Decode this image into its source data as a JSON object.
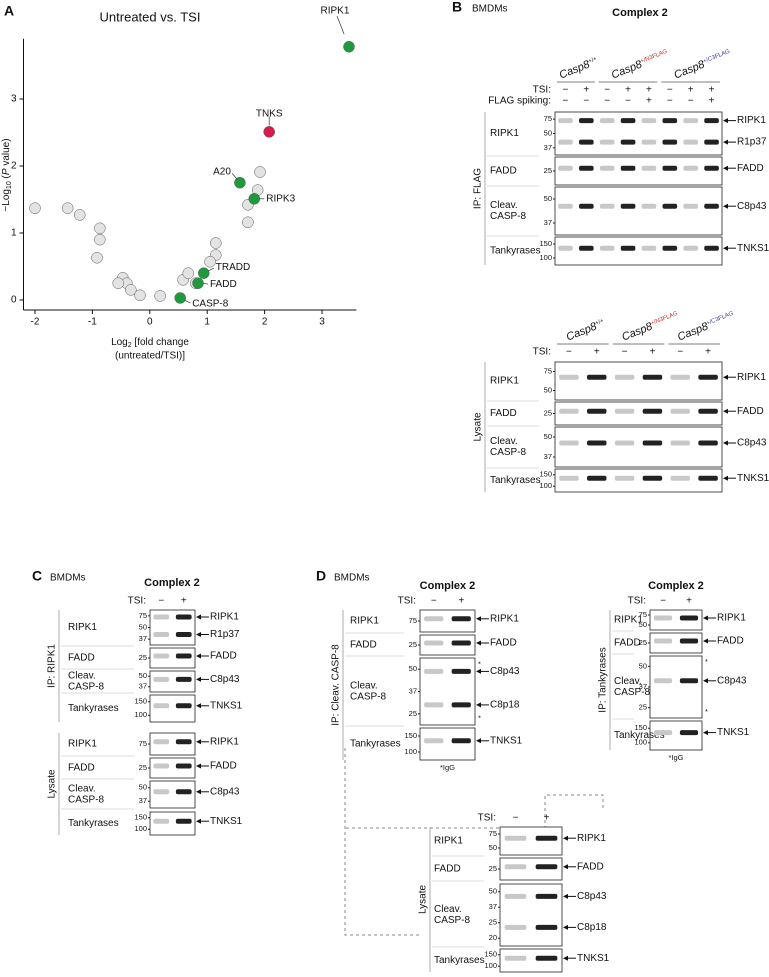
{
  "chart_data": {
    "type": "scatter",
    "letter": "A",
    "title": "Untreated vs. TSI",
    "ylabel_parts": [
      "−Log",
      "10",
      " (",
      "P",
      " value)"
    ],
    "xlabel_parts": [
      "Log",
      "2",
      " [fold change"
    ],
    "xlabel_line2": "(untreated/TSI)]",
    "xlim": [
      -2.2,
      3.6
    ],
    "ylim": [
      -0.15,
      3.9
    ],
    "xticks": [
      -2,
      -1,
      0,
      1,
      2,
      3
    ],
    "yticks": [
      0,
      1,
      2,
      3
    ],
    "series": [
      {
        "color": "#e3e3e3",
        "x": [
          -2.0,
          -1.43,
          -1.22,
          -0.87,
          -0.87,
          -0.92,
          -0.47,
          -0.4,
          -0.55,
          -0.33,
          -0.17,
          0.18,
          0.58,
          0.67,
          0.8,
          1.15,
          1.15,
          1.05,
          1.71,
          1.71,
          1.92,
          1.88
        ],
        "values": [
          1.37,
          1.37,
          1.27,
          1.07,
          0.9,
          0.63,
          0.33,
          0.25,
          0.25,
          0.15,
          0.07,
          0.06,
          0.3,
          0.4,
          0.25,
          0.85,
          0.67,
          0.57,
          1.42,
          1.16,
          1.91,
          1.64
        ]
      },
      {
        "color": "#1e9a3c",
        "x": [
          3.47,
          1.57,
          1.82,
          0.94,
          0.84,
          0.53
        ],
        "values": [
          3.78,
          1.75,
          1.51,
          0.4,
          0.25,
          0.03
        ],
        "labels": [
          "RIPK1",
          "A20",
          "RIPK3",
          "TRADD",
          "FADD",
          "CASP-8"
        ]
      },
      {
        "color": "#d81b4a",
        "x": [
          2.08
        ],
        "values": [
          2.51
        ],
        "labels": [
          "TNKS"
        ]
      }
    ]
  },
  "panels": {
    "B": {
      "letter": "B",
      "cells": "BMDMs",
      "title": "Complex 2",
      "ip": {
        "genotypes": [
          {
            "base": "Casp8",
            "sup": "+/+",
            "color": "#111111"
          },
          {
            "base": "Casp8",
            "sup": "+/N3FLAG",
            "color": "#d62728"
          },
          {
            "base": "Casp8",
            "sup": "+/C3FLAG",
            "color": "#3a3ab0"
          }
        ],
        "tsi_label": "TSI:",
        "tsi": [
          "−",
          "+",
          "−",
          "+",
          "+",
          "−",
          "+",
          "+"
        ],
        "spike_label": "FLAG spiking:",
        "spike": [
          "−",
          "−",
          "−",
          "−",
          "+",
          "−",
          "−",
          "+"
        ],
        "side": "IP: FLAG",
        "rows": [
          {
            "name": [
              "RIPK1"
            ],
            "mw": [
              75,
              50,
              37
            ],
            "targets": [
              "RIPK1",
              "R1p37"
            ]
          },
          {
            "name": [
              "FADD"
            ],
            "mw": [
              25
            ],
            "targets": [
              "FADD"
            ]
          },
          {
            "name": [
              "Cleav.",
              "CASP-8"
            ],
            "mw": [
              50,
              37
            ],
            "targets": [
              "C8p43"
            ]
          },
          {
            "name": [
              "Tankyrases"
            ],
            "mw": [
              150,
              100
            ],
            "targets": [
              "TNKS1"
            ]
          }
        ]
      },
      "lysate": {
        "genotypes": [
          {
            "base": "Casp8",
            "sup": "+/+",
            "color": "#111111"
          },
          {
            "base": "Casp8",
            "sup": "+/N3FLAG",
            "color": "#d62728"
          },
          {
            "base": "Casp8",
            "sup": "+/C3FLAG",
            "color": "#3a3ab0"
          }
        ],
        "tsi_label": "TSI:",
        "tsi": [
          "−",
          "+",
          "−",
          "+",
          "−",
          "+"
        ],
        "side": "Lysate",
        "rows": [
          {
            "name": [
              "RIPK1"
            ],
            "mw": [
              75,
              50
            ],
            "targets": [
              "RIPK1"
            ]
          },
          {
            "name": [
              "FADD"
            ],
            "mw": [
              25
            ],
            "targets": [
              "FADD"
            ]
          },
          {
            "name": [
              "Cleav.",
              "CASP-8"
            ],
            "mw": [
              50,
              37
            ],
            "targets": [
              "C8p43"
            ]
          },
          {
            "name": [
              "Tankyrases"
            ],
            "mw": [
              150,
              100
            ],
            "targets": [
              "TNKS1"
            ]
          }
        ]
      }
    },
    "C": {
      "letter": "C",
      "cells": "BMDMs",
      "title": "Complex 2",
      "ip": {
        "tsi_label": "TSI:",
        "tsi": [
          "−",
          "+"
        ],
        "side": "IP: RIPK1",
        "rows": [
          {
            "name": [
              "RIPK1"
            ],
            "mw": [
              75,
              50,
              37
            ],
            "targets": [
              "RIPK1",
              "R1p37"
            ]
          },
          {
            "name": [
              "FADD"
            ],
            "mw": [
              25
            ],
            "targets": [
              "FADD"
            ]
          },
          {
            "name": [
              "Cleav.",
              "CASP-8"
            ],
            "mw": [
              50,
              37
            ],
            "targets": [
              "C8p43"
            ]
          },
          {
            "name": [
              "Tankyrases"
            ],
            "mw": [
              150,
              100
            ],
            "targets": [
              "TNKS1"
            ]
          }
        ]
      },
      "lysate": {
        "side": "Lysate",
        "rows": [
          {
            "name": [
              "RIPK1"
            ],
            "mw": [
              75
            ],
            "targets": [
              "RIPK1"
            ]
          },
          {
            "name": [
              "FADD"
            ],
            "mw": [
              25
            ],
            "targets": [
              "FADD"
            ]
          },
          {
            "name": [
              "Cleav.",
              "CASP-8"
            ],
            "mw": [
              50,
              37
            ],
            "targets": [
              "C8p43"
            ]
          },
          {
            "name": [
              "Tankyrases"
            ],
            "mw": [
              150,
              100
            ],
            "targets": [
              "TNKS1"
            ]
          }
        ]
      }
    },
    "D": {
      "letter": "D",
      "cells": "BMDMs",
      "ip_casp8": {
        "title": "Complex 2",
        "tsi_label": "TSI:",
        "tsi": [
          "−",
          "+"
        ],
        "side": "IP: Cleav. CASP-8",
        "footnote": "*IgG",
        "rows": [
          {
            "name": [
              "RIPK1"
            ],
            "mw": [
              75
            ],
            "targets": [
              "RIPK1"
            ]
          },
          {
            "name": [
              "FADD"
            ],
            "mw": [
              25
            ],
            "targets": [
              "FADD"
            ]
          },
          {
            "name": [
              "Cleav.",
              "CASP-8"
            ],
            "mw": [
              50,
              37,
              25
            ],
            "targets": [
              "C8p43",
              "C8p18"
            ],
            "asterisks": [
              "*",
              "*"
            ]
          },
          {
            "name": [
              "Tankyrases"
            ],
            "mw": [
              150,
              100
            ],
            "targets": [
              "TNKS1"
            ]
          }
        ]
      },
      "ip_tnks": {
        "title": "Complex 2",
        "tsi_label": "TSI:",
        "tsi": [
          "−",
          "+"
        ],
        "side": "IP: Tankyrases",
        "footnote": "*IgG",
        "rows": [
          {
            "name": [
              "RIPK1"
            ],
            "mw": [
              75,
              50
            ],
            "targets": [
              "RIPK1"
            ]
          },
          {
            "name": [
              "FADD"
            ],
            "mw": [
              25
            ],
            "targets": [
              "FADD"
            ]
          },
          {
            "name": [
              "Cleav.",
              "CASP-8"
            ],
            "mw": [
              50,
              37,
              25
            ],
            "targets": [
              "C8p43"
            ],
            "asterisks": [
              "*",
              "*"
            ]
          },
          {
            "name": [
              "Tankyrases"
            ],
            "mw": [
              150,
              100
            ],
            "targets": [
              "TNKS1"
            ]
          }
        ]
      },
      "lysate": {
        "tsi_label": "TSI:",
        "tsi": [
          "−",
          "+"
        ],
        "side": "Lysate",
        "rows": [
          {
            "name": [
              "RIPK1"
            ],
            "mw": [
              75,
              50
            ],
            "targets": [
              "RIPK1"
            ]
          },
          {
            "name": [
              "FADD"
            ],
            "mw": [
              25
            ],
            "targets": [
              "FADD"
            ]
          },
          {
            "name": [
              "Cleav.",
              "CASP-8"
            ],
            "mw": [
              50,
              37,
              25,
              20
            ],
            "targets": [
              "C8p43",
              "C8p18"
            ]
          },
          {
            "name": [
              "Tankyrases"
            ],
            "mw": [
              150,
              100
            ],
            "targets": [
              "TNKS1"
            ]
          }
        ]
      }
    }
  }
}
